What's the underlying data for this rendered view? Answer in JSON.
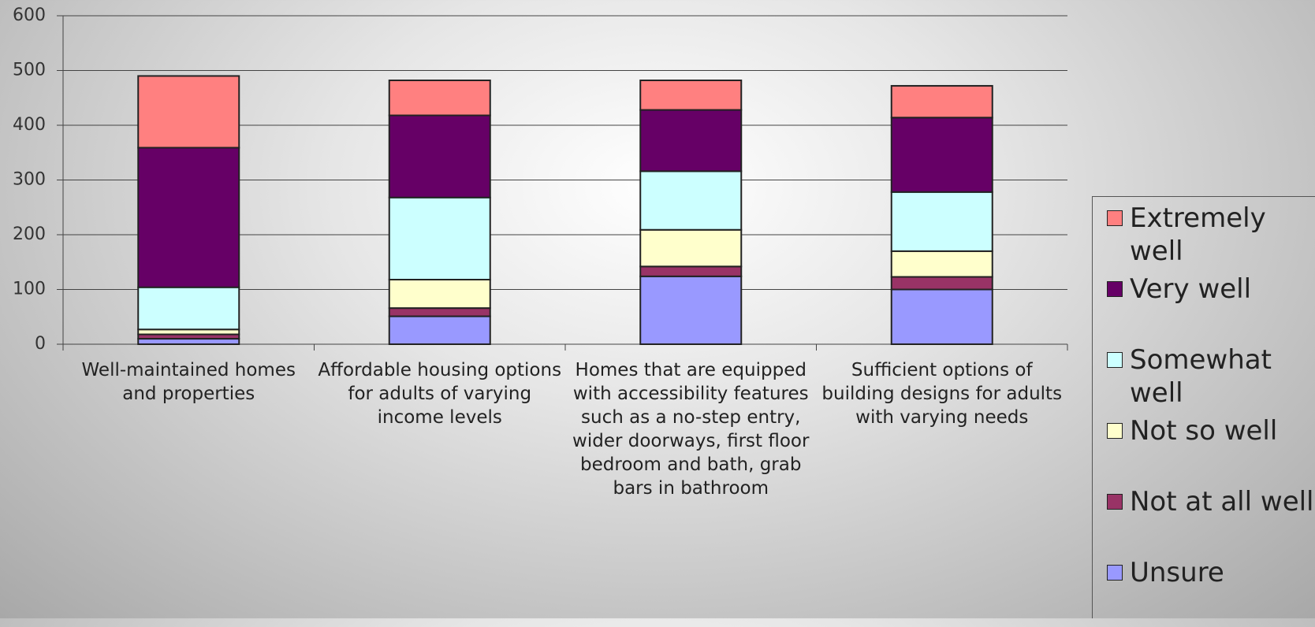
{
  "chart_data": {
    "type": "stacked-bar",
    "categories": [
      "Well-maintained homes and properties",
      "Affordable housing options for adults of varying income levels",
      "Homes that are equipped with accessibility features such as a no-step entry, wider doorways, first floor bedroom and bath, grab bars in bathroom",
      "Sufficient options of building designs for adults with varying needs"
    ],
    "series": [
      {
        "name": "Unsure",
        "color": "#9999ff",
        "values": [
          10,
          51,
          124,
          100
        ]
      },
      {
        "name": "Not at all well",
        "color": "#993366",
        "values": [
          8,
          15,
          18,
          23
        ]
      },
      {
        "name": "Not so well",
        "color": "#ffffcc",
        "values": [
          9,
          52,
          67,
          47
        ]
      },
      {
        "name": "Somewhat well",
        "color": "#ccffff",
        "values": [
          77,
          150,
          107,
          108
        ]
      },
      {
        "name": "Very well",
        "color": "#660066",
        "values": [
          255,
          150,
          112,
          136
        ]
      },
      {
        "name": "Extremely well",
        "color": "#ff8080",
        "values": [
          131,
          64,
          54,
          58
        ]
      }
    ],
    "ylim": [
      0,
      600
    ],
    "yticks": [
      0,
      100,
      200,
      300,
      400,
      500,
      600
    ],
    "grid": true,
    "legend": "right"
  }
}
